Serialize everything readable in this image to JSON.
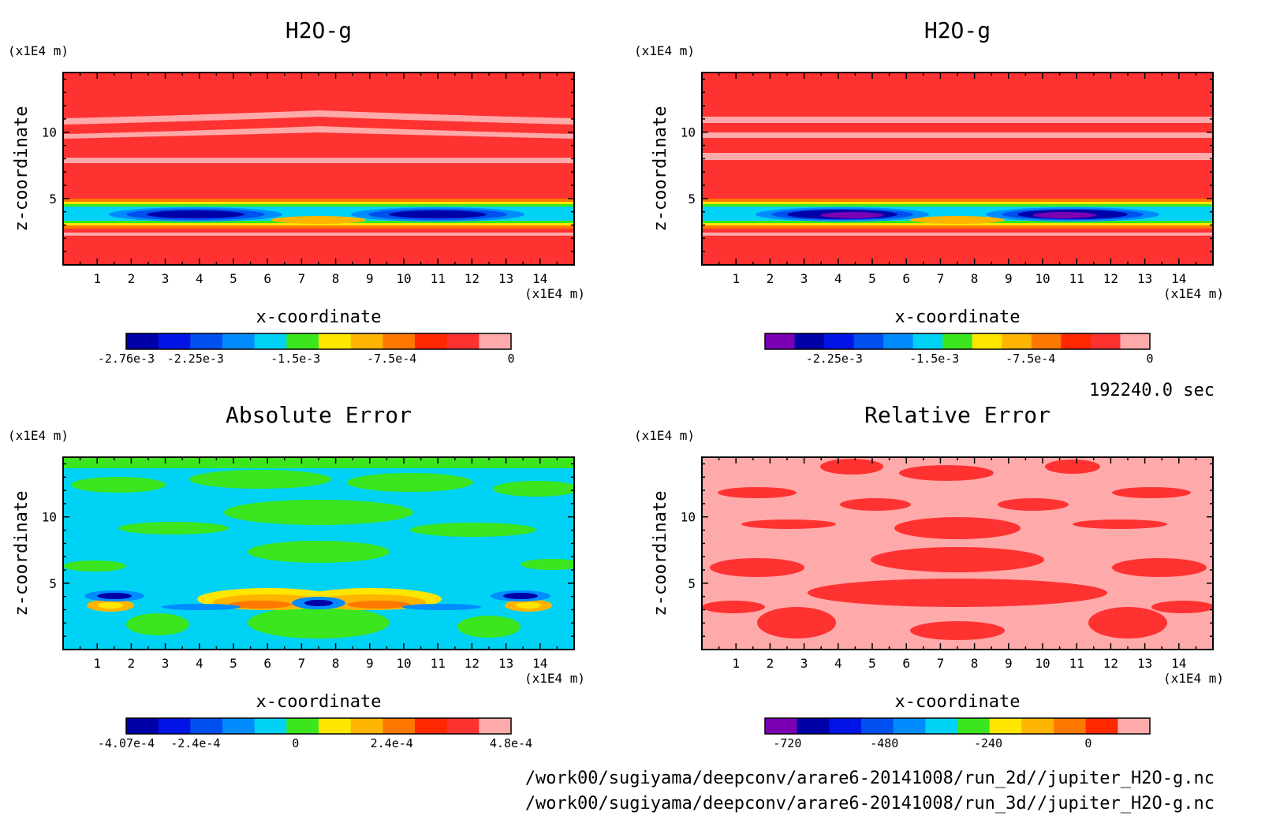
{
  "colors": {
    "purple": "#7b00b4",
    "navy": "#0000a8",
    "blue1": "#0014e6",
    "blue2": "#0050f0",
    "blue3": "#008cff",
    "cyan": "#00d2f5",
    "green": "#3ce61e",
    "yellow": "#ffe600",
    "orange1": "#ffb400",
    "orange2": "#ff7800",
    "red1": "#ff2800",
    "red2": "#ff3232",
    "pink": "#ffaaaa"
  },
  "panels": [
    {
      "title": "H2O-g",
      "ylabel": "z-coordinate",
      "xlabel": "x-coordinate",
      "xunit": "(x1E4 m)",
      "yunit": "(x1E4 m)",
      "xticks": [
        "1",
        "2",
        "3",
        "4",
        "5",
        "6",
        "7",
        "8",
        "9",
        "10",
        "11",
        "12",
        "13",
        "14"
      ],
      "yticks": [
        "5",
        "10"
      ],
      "colorbar": {
        "colors": [
          "navy",
          "blue1",
          "blue2",
          "blue3",
          "cyan",
          "green",
          "yellow",
          "orange1",
          "orange2",
          "red1",
          "red2",
          "pink"
        ],
        "labels": [
          "-2.76e-3",
          "-2.25e-3",
          "-1.5e-3",
          "-7.5e-4",
          "0"
        ]
      }
    },
    {
      "title": "H2O-g",
      "ylabel": "z-coordinate",
      "xlabel": "x-coordinate",
      "xunit": "(x1E4 m)",
      "yunit": "(x1E4 m)",
      "xticks": [
        "1",
        "2",
        "3",
        "4",
        "5",
        "6",
        "7",
        "8",
        "9",
        "10",
        "11",
        "12",
        "13",
        "14"
      ],
      "yticks": [
        "5",
        "10"
      ],
      "colorbar": {
        "colors": [
          "purple",
          "navy",
          "blue1",
          "blue2",
          "blue3",
          "cyan",
          "green",
          "yellow",
          "orange1",
          "orange2",
          "red1",
          "red2",
          "pink"
        ],
        "labels": [
          "-2.25e-3",
          "-1.5e-3",
          "-7.5e-4",
          "0"
        ]
      }
    },
    {
      "title": "Absolute Error",
      "ylabel": "z-coordinate",
      "xlabel": "x-coordinate",
      "xunit": "(x1E4 m)",
      "yunit": "(x1E4 m)",
      "xticks": [
        "1",
        "2",
        "3",
        "4",
        "5",
        "6",
        "7",
        "8",
        "9",
        "10",
        "11",
        "12",
        "13",
        "14"
      ],
      "yticks": [
        "5",
        "10"
      ],
      "colorbar": {
        "colors": [
          "navy",
          "blue1",
          "blue2",
          "blue3",
          "cyan",
          "green",
          "yellow",
          "orange1",
          "orange2",
          "red1",
          "red2",
          "pink"
        ],
        "labels": [
          "-4.07e-4",
          "-2.4e-4",
          "0",
          "2.4e-4",
          "4.8e-4"
        ]
      }
    },
    {
      "title": "Relative Error",
      "ylabel": "z-coordinate",
      "xlabel": "x-coordinate",
      "xunit": "(x1E4 m)",
      "yunit": "(x1E4 m)",
      "xticks": [
        "1",
        "2",
        "3",
        "4",
        "5",
        "6",
        "7",
        "8",
        "9",
        "10",
        "11",
        "12",
        "13",
        "14"
      ],
      "yticks": [
        "5",
        "10"
      ],
      "colorbar": {
        "colors": [
          "purple",
          "navy",
          "blue1",
          "blue2",
          "blue3",
          "cyan",
          "green",
          "yellow",
          "orange1",
          "orange2",
          "red1",
          "pink"
        ],
        "labels": [
          "-720",
          "-480",
          "-240",
          "0"
        ]
      }
    }
  ],
  "time_label": "192240.0 sec",
  "footer_lines": [
    "/work00/sugiyama/deepconv/arare6-20141008/run_2d//jupiter_H2O-g.nc",
    "/work00/sugiyama/deepconv/arare6-20141008/run_3d//jupiter_H2O-g.nc"
  ],
  "chart_data": [
    {
      "type": "heatmap",
      "title": "H2O-g",
      "xlabel": "x-coordinate",
      "ylabel": "z-coordinate",
      "x_unit": "(x1E4 m)",
      "y_unit": "(x1E4 m)",
      "xlim": [
        0,
        15
      ],
      "ylim": [
        0,
        14.5
      ],
      "colorbar_labels": [
        "-2.76e-3",
        "-2.25e-3",
        "-1.5e-3",
        "-7.5e-4",
        "0"
      ],
      "features": [
        {
          "level": "navy",
          "x_center": 4,
          "z_center": 3.7,
          "description": "minimum band"
        },
        {
          "level": "navy",
          "x_center": 11,
          "z_center": 3.7,
          "description": "minimum band"
        },
        {
          "level": "pink",
          "z_values": [
            8.0,
            10.2,
            11.8
          ],
          "description": "near-zero horizontal bands"
        }
      ]
    },
    {
      "type": "heatmap",
      "title": "H2O-g",
      "xlabel": "x-coordinate",
      "ylabel": "z-coordinate",
      "x_unit": "(x1E4 m)",
      "y_unit": "(x1E4 m)",
      "xlim": [
        0,
        15
      ],
      "ylim": [
        0,
        14.5
      ],
      "colorbar_labels": [
        "-2.25e-3",
        "-1.5e-3",
        "-7.5e-4",
        "0"
      ],
      "features": [
        {
          "level": "purple",
          "x_center": 4.5,
          "z_center": 3.7,
          "description": "minimum core"
        },
        {
          "level": "purple",
          "x_center": 10.5,
          "z_center": 3.7,
          "description": "minimum core"
        }
      ]
    },
    {
      "type": "heatmap",
      "title": "Absolute Error",
      "xlabel": "x-coordinate",
      "ylabel": "z-coordinate",
      "x_unit": "(x1E4 m)",
      "y_unit": "(x1E4 m)",
      "xlim": [
        0,
        15
      ],
      "ylim": [
        0,
        14.5
      ],
      "colorbar_labels": [
        "-4.07e-4",
        "-2.4e-4",
        "0",
        "2.4e-4",
        "4.8e-4"
      ]
    },
    {
      "type": "heatmap",
      "title": "Relative Error",
      "xlabel": "x-coordinate",
      "ylabel": "z-coordinate",
      "x_unit": "(x1E4 m)",
      "y_unit": "(x1E4 m)",
      "xlim": [
        0,
        15
      ],
      "ylim": [
        0,
        14.5
      ],
      "colorbar_labels": [
        "-720",
        "-480",
        "-240",
        "0"
      ]
    }
  ]
}
